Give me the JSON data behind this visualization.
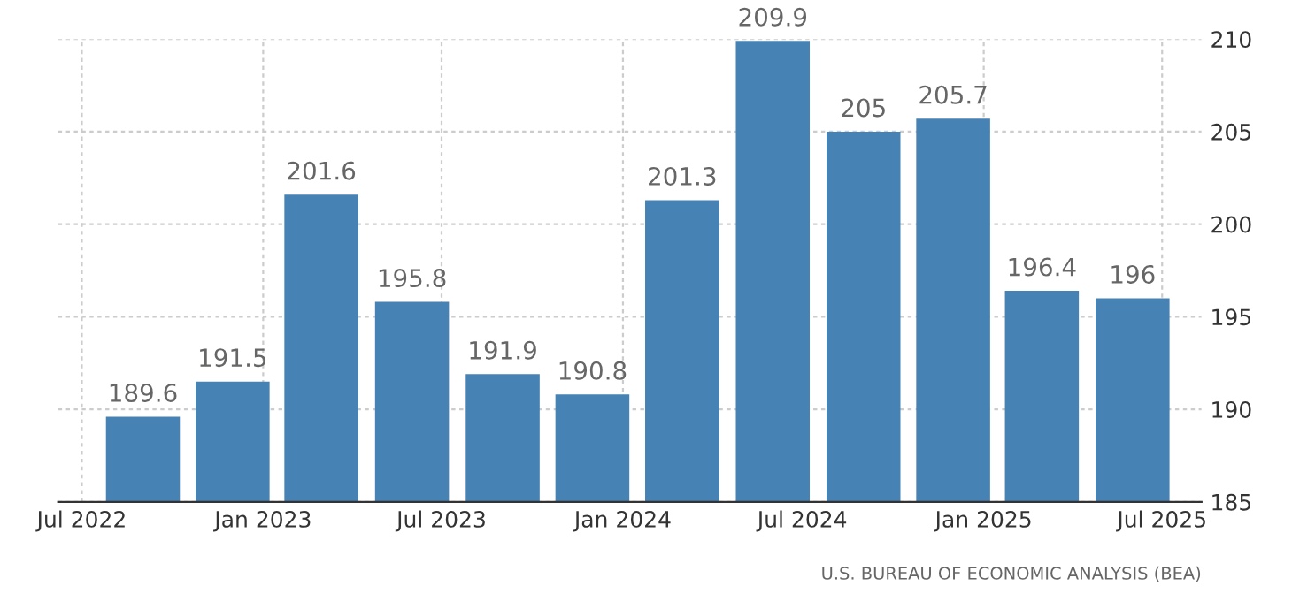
{
  "chart_data": {
    "type": "bar",
    "x": [
      "2022-09",
      "2022-12",
      "2023-03",
      "2023-06",
      "2023-09",
      "2023-12",
      "2024-03",
      "2024-06",
      "2024-09",
      "2024-12",
      "2025-03",
      "2025-06"
    ],
    "values": [
      189.6,
      191.5,
      201.6,
      195.8,
      191.9,
      190.8,
      201.3,
      209.9,
      205,
      205.7,
      196.4,
      196
    ],
    "color": "#4682b4",
    "data_labels": true,
    "ylim": [
      185,
      210
    ],
    "yticks": [
      185,
      190,
      195,
      200,
      205,
      210
    ],
    "xlim": [
      "2022-06-07",
      "2025-08-10"
    ],
    "xticks": [
      {
        "value": "2022-07",
        "label": "Jul 2022"
      },
      {
        "value": "2023-01",
        "label": "Jan 2023"
      },
      {
        "value": "2023-07",
        "label": "Jul 2023"
      },
      {
        "value": "2024-01",
        "label": "Jan 2024"
      },
      {
        "value": "2024-07",
        "label": "Jul 2024"
      },
      {
        "value": "2025-01",
        "label": "Jan 2025"
      },
      {
        "value": "2025-07",
        "label": "Jul 2025"
      }
    ],
    "grid": true,
    "annotations": [
      "U.S. BUREAU OF ECONOMIC ANALYSIS (BEA)"
    ]
  }
}
